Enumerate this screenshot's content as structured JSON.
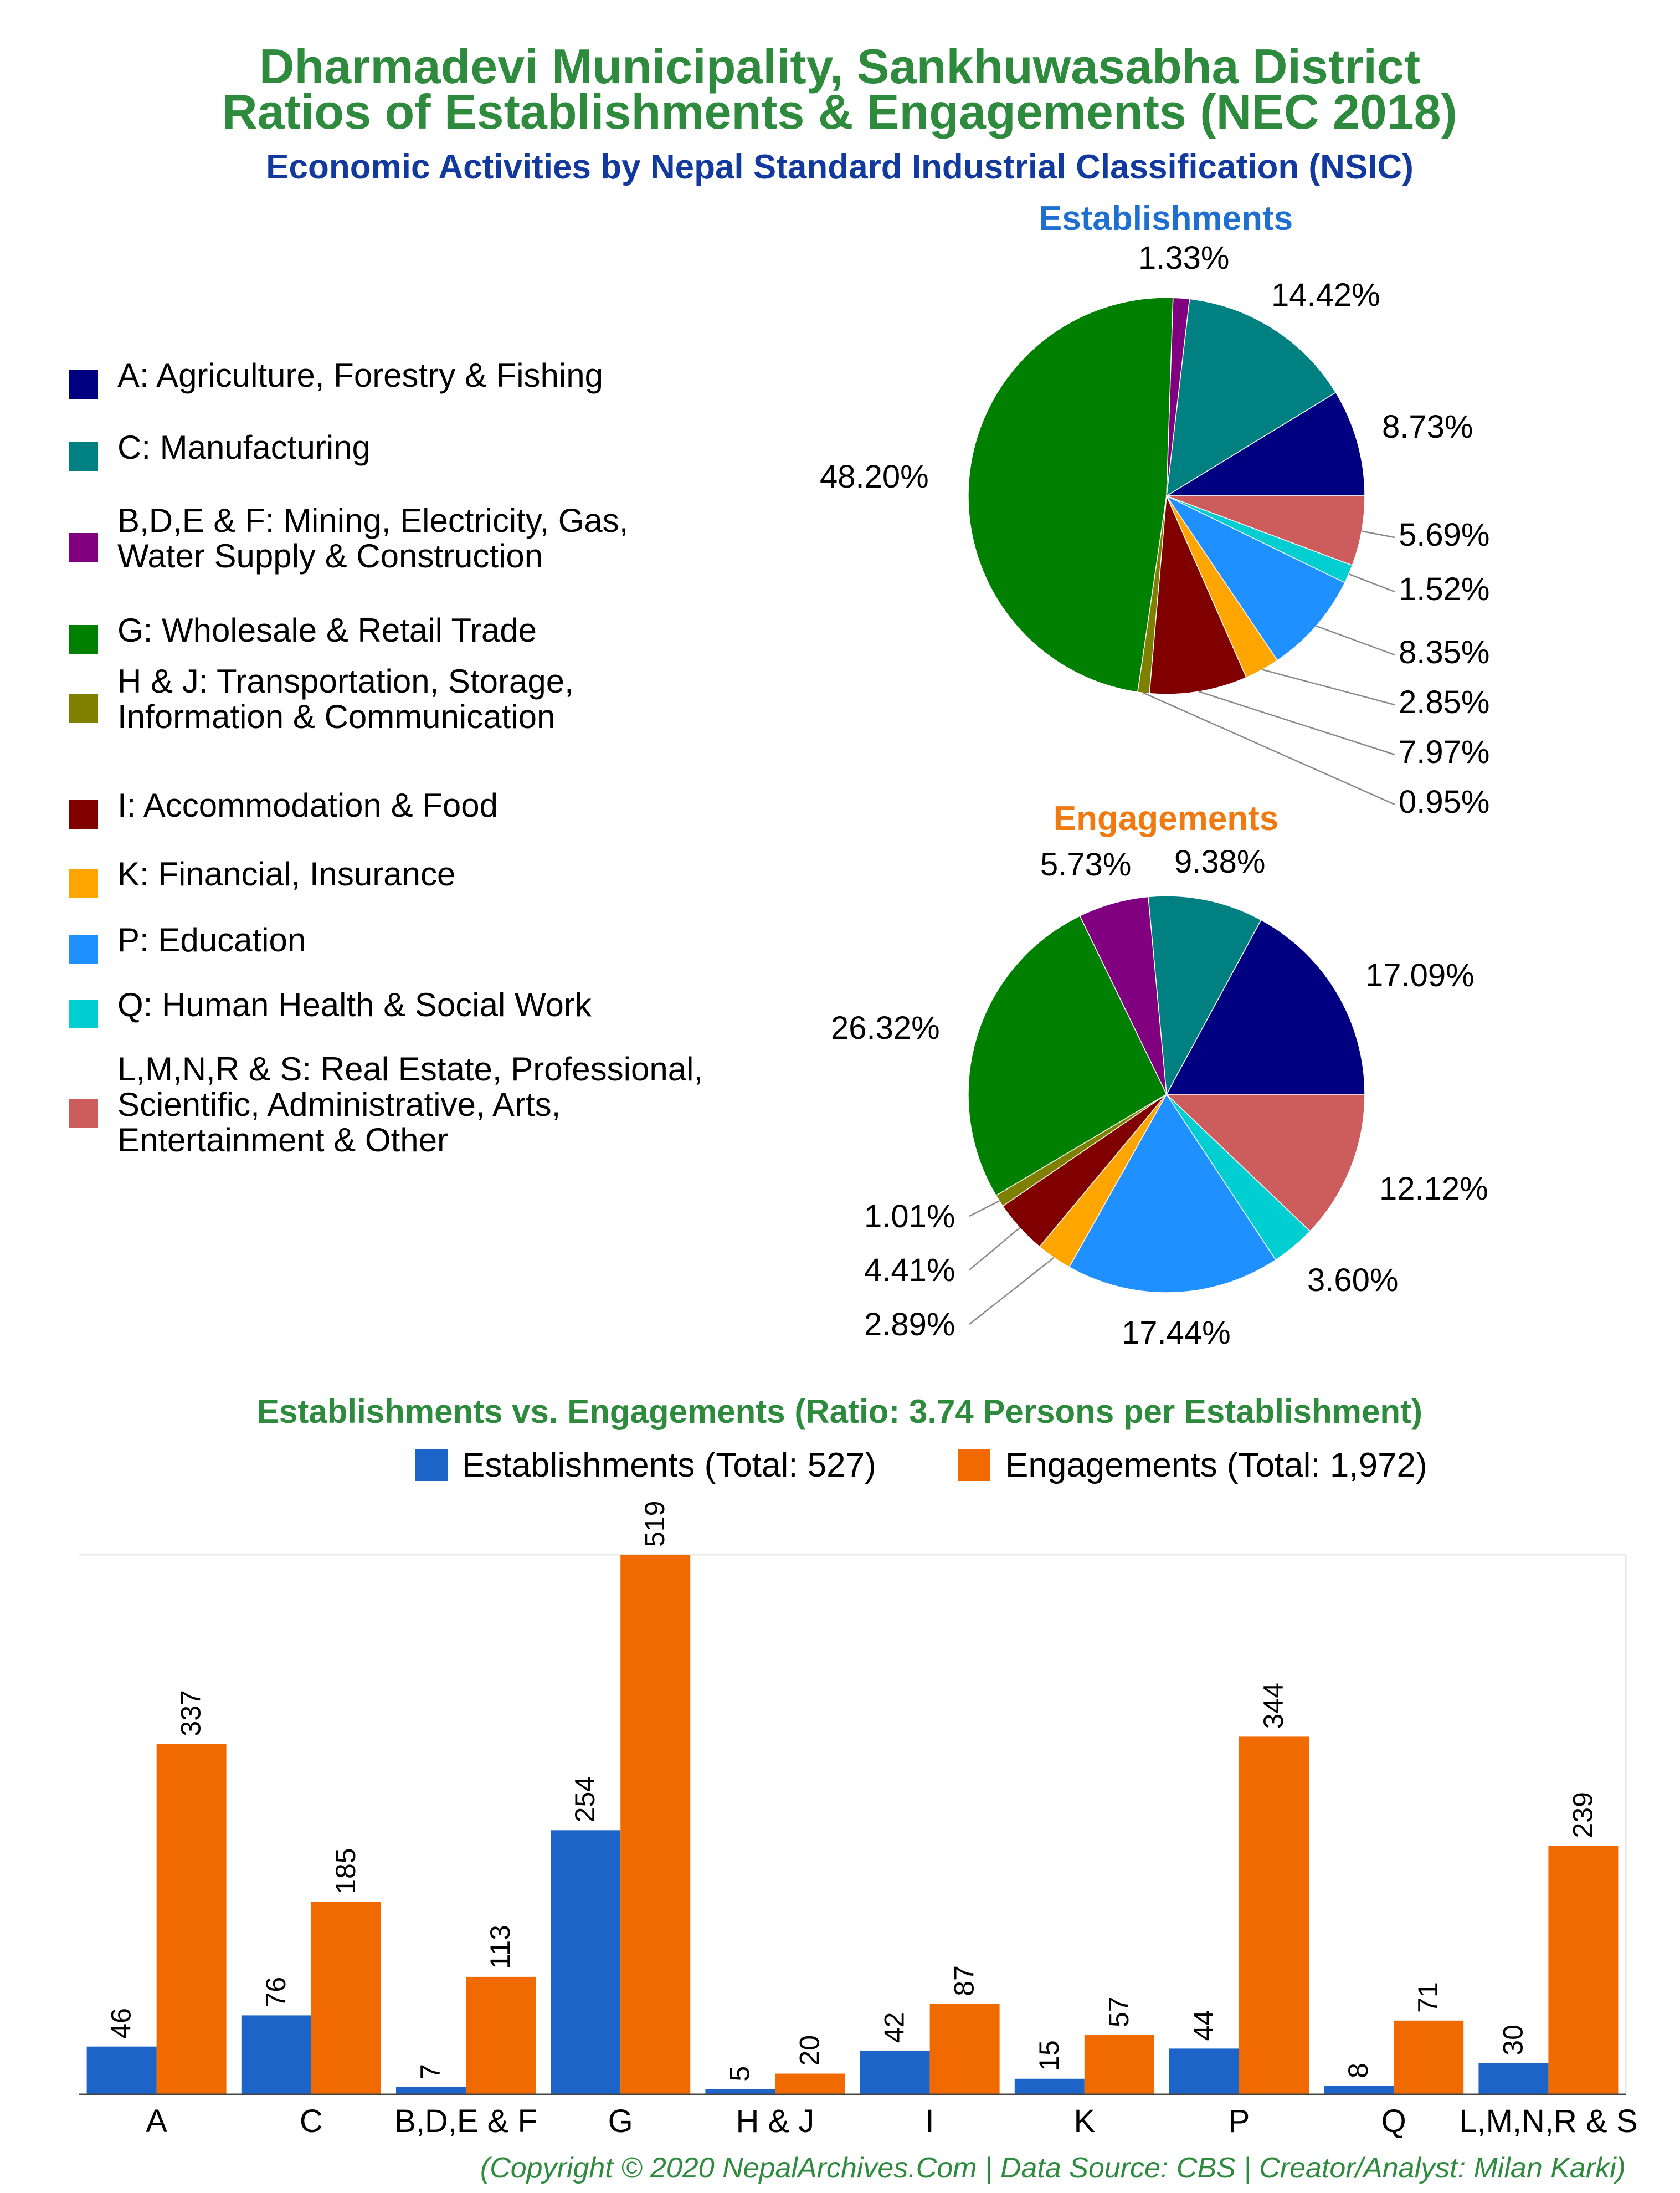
{
  "header": {
    "title_line1": "Dharmadevi Municipality, Sankhuwasabha District",
    "title_line2": "Ratios of Establishments & Engagements (NEC 2018)",
    "subtitle": "Economic Activities by Nepal Standard Industrial Classification (NSIC)"
  },
  "colors": {
    "title": "#2e8b3e",
    "subtitle": "#123a9e",
    "establishments_heading": "#1f6fd1",
    "engagements_heading": "#f07a10",
    "bar_establishments": "#1c64c8",
    "bar_engagements": "#f06a00",
    "copyright": "#2e8b3e"
  },
  "legend": [
    {
      "label_lines": [
        "A: Agriculture, Forestry & Fishing"
      ],
      "color": "#000080"
    },
    {
      "label_lines": [
        "C: Manufacturing"
      ],
      "color": "#008080"
    },
    {
      "label_lines": [
        "B,D,E & F: Mining, Electricity, Gas,",
        "Water Supply & Construction"
      ],
      "color": "#800080"
    },
    {
      "label_lines": [
        "G: Wholesale & Retail Trade"
      ],
      "color": "#008000"
    },
    {
      "label_lines": [
        "H & J: Transportation, Storage,",
        "Information & Communication"
      ],
      "color": "#808000"
    },
    {
      "label_lines": [
        "I: Accommodation & Food"
      ],
      "color": "#800000"
    },
    {
      "label_lines": [
        "K: Financial, Insurance"
      ],
      "color": "#ffa500"
    },
    {
      "label_lines": [
        "P: Education"
      ],
      "color": "#1e90ff"
    },
    {
      "label_lines": [
        "Q: Human Health & Social Work"
      ],
      "color": "#00ced1"
    },
    {
      "label_lines": [
        "L,M,N,R & S: Real Estate, Professional,",
        "Scientific, Administrative, Arts,",
        "Entertainment & Other"
      ],
      "color": "#cd5c5c"
    }
  ],
  "chart_data": [
    {
      "type": "pie",
      "title": "Establishments",
      "labels": [
        "A",
        "C",
        "B,D,E & F",
        "G",
        "H & J",
        "I",
        "K",
        "P",
        "Q",
        "L,M,N,R & S"
      ],
      "values": [
        8.73,
        14.42,
        1.33,
        48.2,
        0.95,
        7.97,
        2.85,
        8.35,
        1.52,
        5.69
      ],
      "value_labels": [
        "8.73%",
        "14.42%",
        "1.33%",
        "48.20%",
        "0.95%",
        "7.97%",
        "2.85%",
        "8.35%",
        "1.52%",
        "5.69%"
      ]
    },
    {
      "type": "pie",
      "title": "Engagements",
      "labels": [
        "A",
        "C",
        "B,D,E & F",
        "G",
        "H & J",
        "I",
        "K",
        "P",
        "Q",
        "L,M,N,R & S"
      ],
      "values": [
        17.09,
        9.38,
        5.73,
        26.32,
        1.01,
        4.41,
        2.89,
        17.44,
        3.6,
        12.12
      ],
      "value_labels": [
        "17.09%",
        "9.38%",
        "5.73%",
        "26.32%",
        "1.01%",
        "4.41%",
        "2.89%",
        "17.44%",
        "3.60%",
        "12.12%"
      ]
    },
    {
      "type": "bar",
      "title": "Establishments vs. Engagements (Ratio: 3.74 Persons per Establishment)",
      "categories": [
        "A",
        "C",
        "B,D,E & F",
        "G",
        "H & J",
        "I",
        "K",
        "P",
        "Q",
        "L,M,N,R & S"
      ],
      "series": [
        {
          "name": "Establishments (Total: 527)",
          "values": [
            46,
            76,
            7,
            254,
            5,
            42,
            15,
            44,
            8,
            30
          ]
        },
        {
          "name": "Engagements (Total: 1,972)",
          "values": [
            337,
            185,
            113,
            519,
            20,
            87,
            57,
            344,
            71,
            239
          ]
        }
      ],
      "ylim": [
        0,
        519
      ],
      "grid": false,
      "legend_position": "top"
    }
  ],
  "footer": {
    "copyright": "(Copyright © 2020 NepalArchives.Com | Data Source: CBS | Creator/Analyst: Milan Karki)"
  }
}
